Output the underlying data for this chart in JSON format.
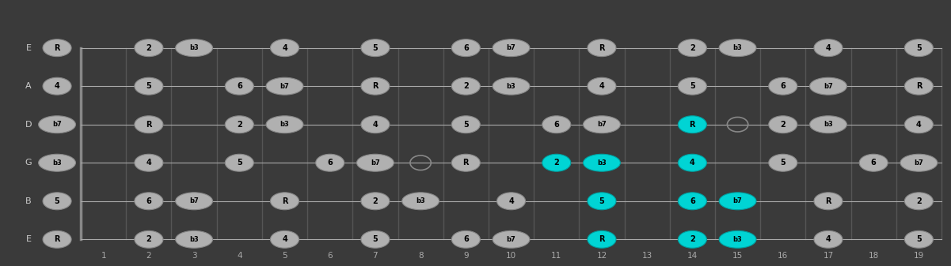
{
  "bg_color": "#3a3a3a",
  "fret_color": "#555555",
  "string_color": "#aaaaaa",
  "dot_color_normal": "#b0b0b0",
  "dot_color_highlight": "#00d4d4",
  "dot_outline": "#888888",
  "dot_text_color": "#000000",
  "open_dot_color": "none",
  "open_dot_outline": "#888888",
  "string_labels": [
    "E",
    "B",
    "G",
    "D",
    "A",
    "E"
  ],
  "fret_numbers": [
    1,
    2,
    3,
    4,
    5,
    6,
    7,
    8,
    9,
    10,
    11,
    12,
    13,
    14,
    15,
    16,
    17,
    18,
    19
  ],
  "num_frets": 19,
  "num_strings": 6,
  "figsize": [
    12.01,
    3.37
  ],
  "dpi": 100,
  "notes": [
    {
      "string": 0,
      "fret": 0,
      "label": "R",
      "highlight": false
    },
    {
      "string": 0,
      "fret": 2,
      "label": "2",
      "highlight": false
    },
    {
      "string": 0,
      "fret": 3,
      "label": "b3",
      "highlight": false
    },
    {
      "string": 0,
      "fret": 5,
      "label": "4",
      "highlight": false
    },
    {
      "string": 0,
      "fret": 7,
      "label": "5",
      "highlight": false
    },
    {
      "string": 0,
      "fret": 9,
      "label": "6",
      "highlight": false
    },
    {
      "string": 0,
      "fret": 10,
      "label": "b7",
      "highlight": false
    },
    {
      "string": 0,
      "fret": 12,
      "label": "R",
      "highlight": true
    },
    {
      "string": 0,
      "fret": 14,
      "label": "2",
      "highlight": true
    },
    {
      "string": 0,
      "fret": 15,
      "label": "b3",
      "highlight": true
    },
    {
      "string": 0,
      "fret": 17,
      "label": "4",
      "highlight": false
    },
    {
      "string": 0,
      "fret": 19,
      "label": "5",
      "highlight": false
    },
    {
      "string": 1,
      "fret": 0,
      "label": "5",
      "highlight": false
    },
    {
      "string": 1,
      "fret": 2,
      "label": "6",
      "highlight": false
    },
    {
      "string": 1,
      "fret": 3,
      "label": "b7",
      "highlight": false
    },
    {
      "string": 1,
      "fret": 5,
      "label": "R",
      "highlight": false
    },
    {
      "string": 1,
      "fret": 7,
      "label": "2",
      "highlight": false
    },
    {
      "string": 1,
      "fret": 8,
      "label": "b3",
      "highlight": false
    },
    {
      "string": 1,
      "fret": 10,
      "label": "4",
      "highlight": false
    },
    {
      "string": 1,
      "fret": 12,
      "label": "5",
      "highlight": true
    },
    {
      "string": 1,
      "fret": 14,
      "label": "6",
      "highlight": true
    },
    {
      "string": 1,
      "fret": 15,
      "label": "b7",
      "highlight": true
    },
    {
      "string": 1,
      "fret": 17,
      "label": "R",
      "highlight": false
    },
    {
      "string": 1,
      "fret": 19,
      "label": "2",
      "highlight": false
    },
    {
      "string": 2,
      "fret": 0,
      "label": "b3",
      "highlight": false
    },
    {
      "string": 2,
      "fret": 2,
      "label": "4",
      "highlight": false
    },
    {
      "string": 2,
      "fret": 4,
      "label": "5",
      "highlight": false,
      "open": true
    },
    {
      "string": 2,
      "fret": 6,
      "label": "6",
      "highlight": false
    },
    {
      "string": 2,
      "fret": 7,
      "label": "b7",
      "highlight": false
    },
    {
      "string": 2,
      "fret": 9,
      "label": "R",
      "highlight": false
    },
    {
      "string": 2,
      "fret": 11,
      "label": "2",
      "highlight": true
    },
    {
      "string": 2,
      "fret": 12,
      "label": "b3",
      "highlight": true
    },
    {
      "string": 2,
      "fret": 14,
      "label": "4",
      "highlight": true
    },
    {
      "string": 2,
      "fret": 16,
      "label": "5",
      "highlight": false
    },
    {
      "string": 2,
      "fret": 18,
      "label": "6",
      "highlight": false
    },
    {
      "string": 2,
      "fret": 19,
      "label": "b7",
      "highlight": false
    },
    {
      "string": 3,
      "fret": 0,
      "label": "b7",
      "highlight": false
    },
    {
      "string": 3,
      "fret": 2,
      "label": "R",
      "highlight": false
    },
    {
      "string": 3,
      "fret": 4,
      "label": "2",
      "highlight": false,
      "open": true
    },
    {
      "string": 3,
      "fret": 5,
      "label": "b3",
      "highlight": false
    },
    {
      "string": 3,
      "fret": 7,
      "label": "4",
      "highlight": false,
      "open": true
    },
    {
      "string": 3,
      "fret": 9,
      "label": "5",
      "highlight": false
    },
    {
      "string": 3,
      "fret": 11,
      "label": "6",
      "highlight": false
    },
    {
      "string": 3,
      "fret": 12,
      "label": "b7",
      "highlight": false
    },
    {
      "string": 3,
      "fret": 14,
      "label": "R",
      "highlight": true
    },
    {
      "string": 3,
      "fret": 16,
      "label": "2",
      "highlight": false
    },
    {
      "string": 3,
      "fret": 17,
      "label": "b3",
      "highlight": false
    },
    {
      "string": 3,
      "fret": 19,
      "label": "4",
      "highlight": false
    },
    {
      "string": 4,
      "fret": 0,
      "label": "4",
      "highlight": false
    },
    {
      "string": 4,
      "fret": 2,
      "label": "5",
      "highlight": false
    },
    {
      "string": 4,
      "fret": 4,
      "label": "6",
      "highlight": false
    },
    {
      "string": 4,
      "fret": 5,
      "label": "b7",
      "highlight": false
    },
    {
      "string": 4,
      "fret": 7,
      "label": "R",
      "highlight": false
    },
    {
      "string": 4,
      "fret": 9,
      "label": "2",
      "highlight": false
    },
    {
      "string": 4,
      "fret": 10,
      "label": "b3",
      "highlight": false
    },
    {
      "string": 4,
      "fret": 12,
      "label": "4",
      "highlight": false
    },
    {
      "string": 4,
      "fret": 14,
      "label": "5",
      "highlight": false
    },
    {
      "string": 4,
      "fret": 16,
      "label": "6",
      "highlight": false
    },
    {
      "string": 4,
      "fret": 17,
      "label": "b7",
      "highlight": false
    },
    {
      "string": 4,
      "fret": 19,
      "label": "R",
      "highlight": false
    },
    {
      "string": 5,
      "fret": 0,
      "label": "R",
      "highlight": false
    },
    {
      "string": 5,
      "fret": 2,
      "label": "2",
      "highlight": false
    },
    {
      "string": 5,
      "fret": 3,
      "label": "b3",
      "highlight": false
    },
    {
      "string": 5,
      "fret": 5,
      "label": "4",
      "highlight": false
    },
    {
      "string": 5,
      "fret": 7,
      "label": "5",
      "highlight": false
    },
    {
      "string": 5,
      "fret": 9,
      "label": "6",
      "highlight": false
    },
    {
      "string": 5,
      "fret": 10,
      "label": "b7",
      "highlight": false
    },
    {
      "string": 5,
      "fret": 12,
      "label": "R",
      "highlight": false
    },
    {
      "string": 5,
      "fret": 14,
      "label": "2",
      "highlight": false
    },
    {
      "string": 5,
      "fret": 15,
      "label": "b3",
      "highlight": false
    },
    {
      "string": 5,
      "fret": 17,
      "label": "4",
      "highlight": false
    },
    {
      "string": 5,
      "fret": 19,
      "label": "5",
      "highlight": false
    }
  ],
  "open_dots": [
    {
      "string": 2,
      "fret": 4
    },
    {
      "string": 2,
      "fret": 8
    },
    {
      "string": 3,
      "fret": 4
    },
    {
      "string": 3,
      "fret": 7
    },
    {
      "string": 3,
      "fret": 9
    },
    {
      "string": 3,
      "fret": 15
    },
    {
      "string": 3,
      "fret": 16
    },
    {
      "string": 2,
      "fret": 16
    },
    {
      "string": 2,
      "fret": 19
    },
    {
      "string": 3,
      "fret": 19
    }
  ]
}
